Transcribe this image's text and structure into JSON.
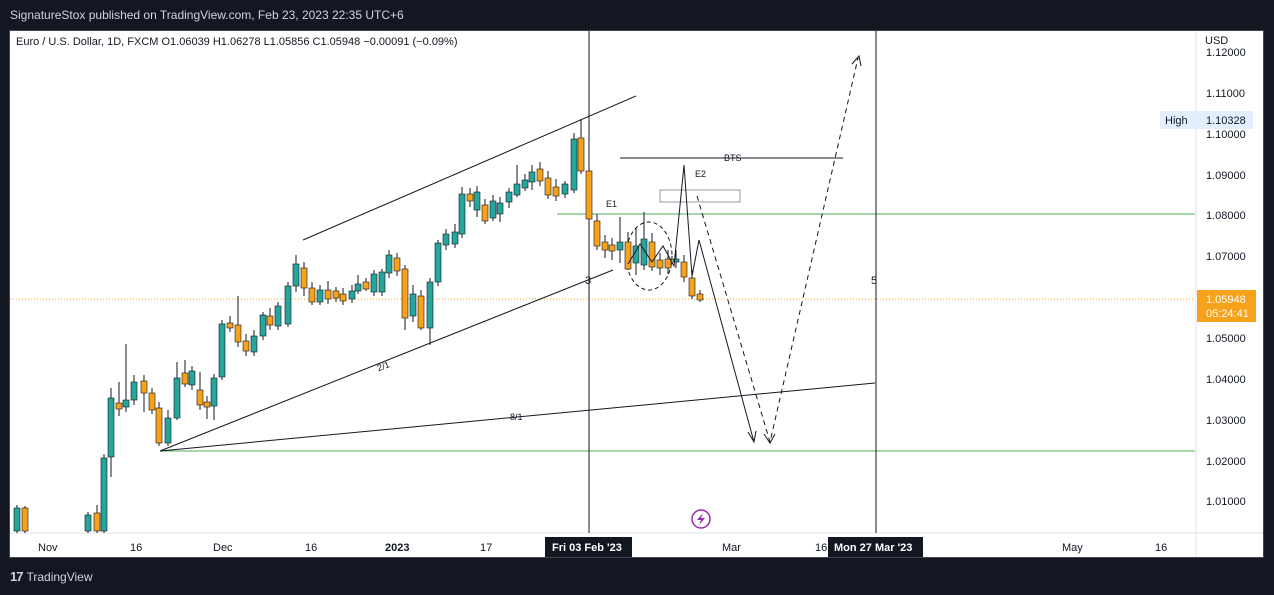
{
  "header": {
    "published": "SignatureStox published on TradingView.com, Feb 23, 2023 22:35 UTC+6"
  },
  "legend": {
    "text": "Euro / U.S. Dollar, 1D, FXCM  O1.06039  H1.06278  L1.05856  C1.05948  −0.00091 (−0.09%)"
  },
  "price_axis": {
    "currency": "USD",
    "ticks": [
      "1.12000",
      "1.11000",
      "1.10000",
      "1.09000",
      "1.08000",
      "1.07000",
      "1.06000",
      "1.05000",
      "1.04000",
      "1.03000",
      "1.02000",
      "1.01000"
    ]
  },
  "high_label": {
    "label": "High",
    "value": "1.10328"
  },
  "current_price": {
    "value": "1.05948",
    "countdown": "05:24:41"
  },
  "time_axis": {
    "ticks": [
      "Nov",
      "16",
      "Dec",
      "16",
      "2023",
      "17",
      "Mar",
      "16",
      "May",
      "16"
    ],
    "crosshair_labels": [
      "Fri 03 Feb '23",
      "Mon 27 Mar '23"
    ]
  },
  "annotations": {
    "bts": "BTS",
    "e1": "E1",
    "e2": "E2",
    "wave3": "3",
    "wave5": "5",
    "fan_2_1": "2/1",
    "fan_8_1": "8/1"
  },
  "footer": {
    "brand": "TradingView"
  },
  "colors": {
    "up": "#26a69a",
    "down": "#f7a21b",
    "support": "#4caf50",
    "price_tag": "#f7a21b",
    "high_tag": "#e3effd"
  }
}
